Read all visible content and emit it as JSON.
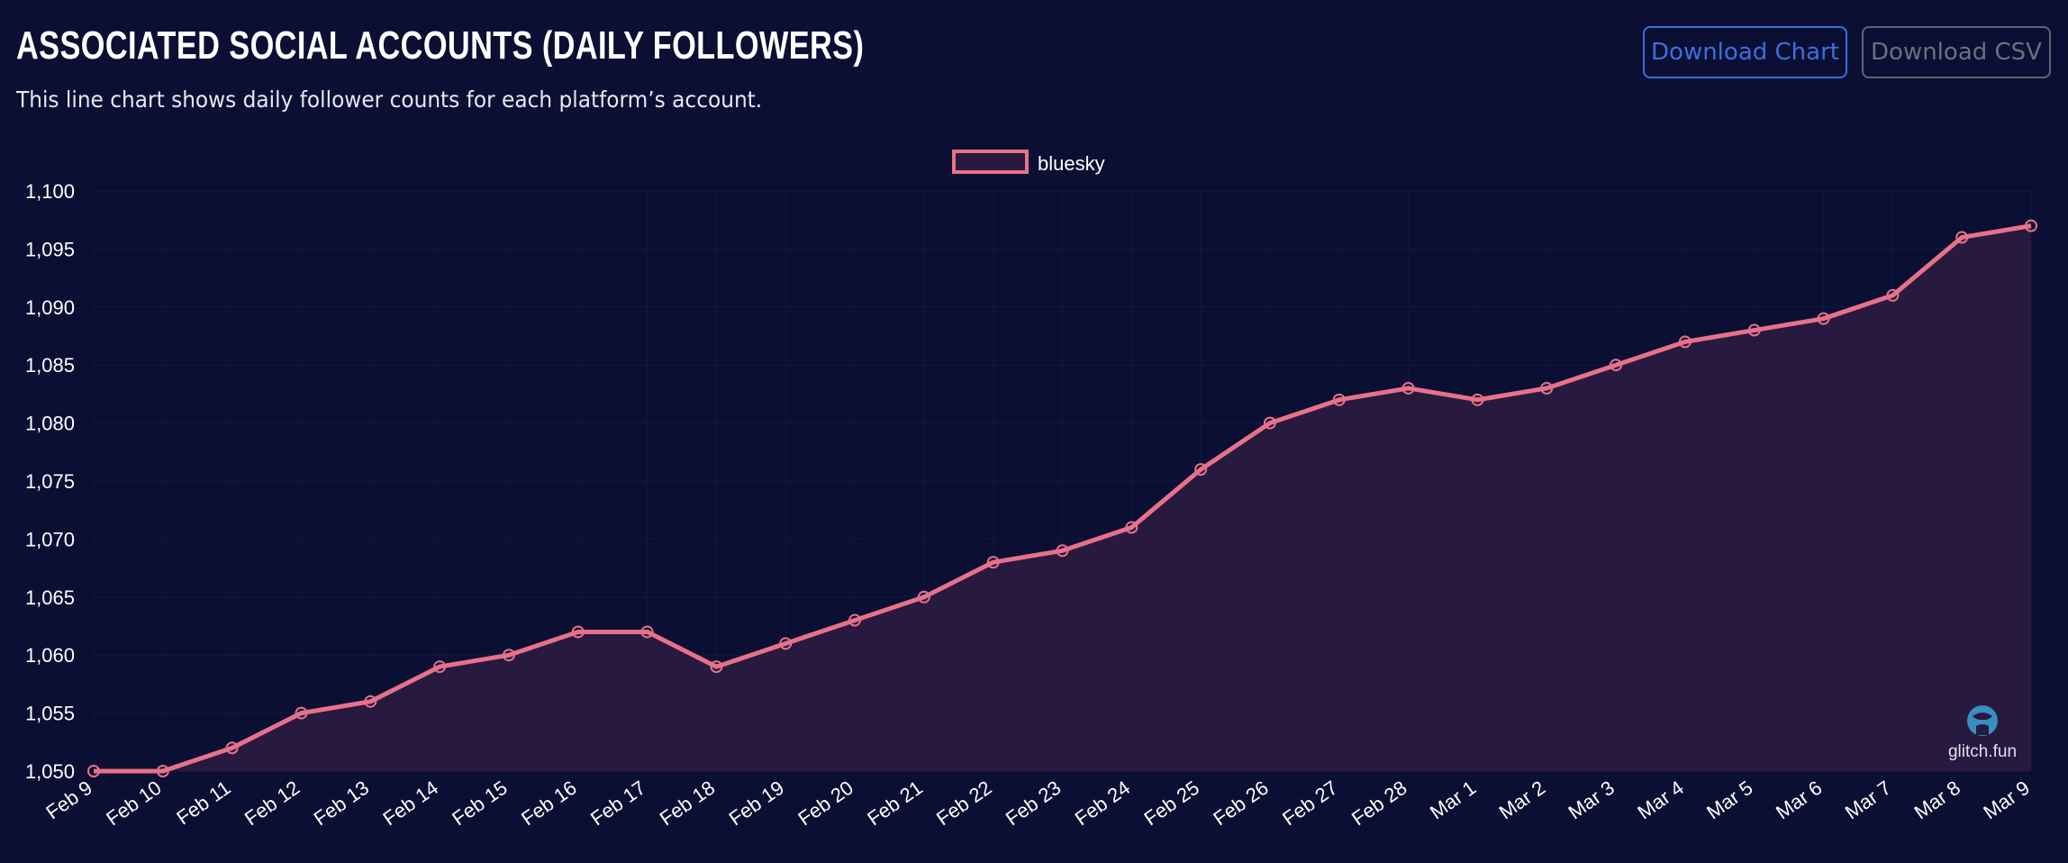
{
  "header": {
    "title": "ASSOCIATED SOCIAL ACCOUNTS (DAILY FOLLOWERS)",
    "subtitle": "This line chart shows daily follower counts for each platform’s account.",
    "download_chart_label": "Download Chart",
    "download_csv_label": "Download CSV"
  },
  "watermark": {
    "text": "glitch.fun",
    "icon": "glitch-logo-icon"
  },
  "colors": {
    "background": "#0a0f33",
    "line": "#e8718a",
    "fill": "#271a3e",
    "primary_button": "#3b6fe0"
  },
  "chart_data": {
    "type": "area",
    "legend_placement": "top-center",
    "grid": true,
    "ylim": [
      1050,
      1100
    ],
    "yticks": [
      1050,
      1055,
      1060,
      1065,
      1070,
      1075,
      1080,
      1085,
      1090,
      1095,
      1100
    ],
    "ytick_labels": [
      "1,050",
      "1,055",
      "1,060",
      "1,065",
      "1,070",
      "1,075",
      "1,080",
      "1,085",
      "1,090",
      "1,095",
      "1,100"
    ],
    "categories": [
      "Feb 9",
      "Feb 10",
      "Feb 11",
      "Feb 12",
      "Feb 13",
      "Feb 14",
      "Feb 15",
      "Feb 16",
      "Feb 17",
      "Feb 18",
      "Feb 19",
      "Feb 20",
      "Feb 21",
      "Feb 22",
      "Feb 23",
      "Feb 24",
      "Feb 25",
      "Feb 26",
      "Feb 27",
      "Feb 28",
      "Mar 1",
      "Mar 2",
      "Mar 3",
      "Mar 4",
      "Mar 5",
      "Mar 6",
      "Mar 7",
      "Mar 8",
      "Mar 9"
    ],
    "series": [
      {
        "name": "bluesky",
        "values": [
          1050,
          1050,
          1052,
          1055,
          1056,
          1059,
          1060,
          1062,
          1062,
          1059,
          1061,
          1063,
          1065,
          1068,
          1069,
          1071,
          1076,
          1080,
          1082,
          1083,
          1082,
          1083,
          1085,
          1087,
          1088,
          1089,
          1091,
          1096,
          1097
        ]
      }
    ]
  }
}
